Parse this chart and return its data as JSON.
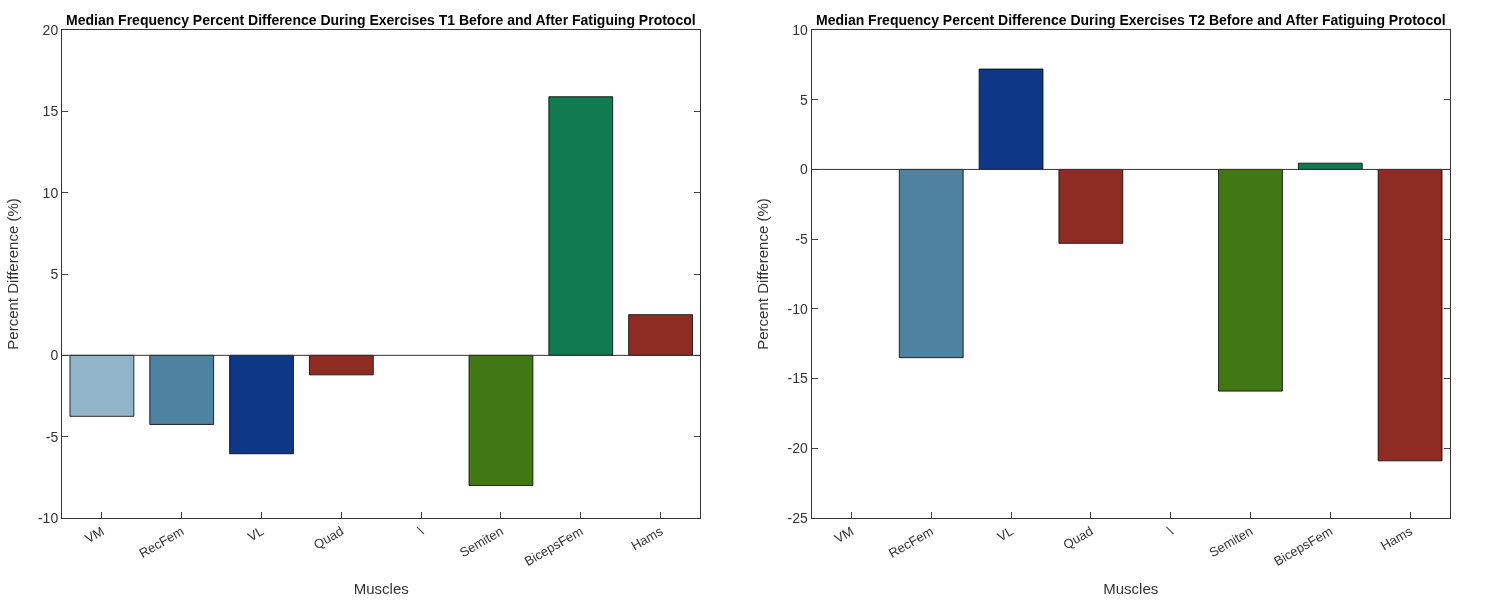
{
  "chart_data": [
    {
      "type": "bar",
      "title": "Median Frequency Percent Difference During Exercises T1 Before and After Fatiguing Protocol",
      "xlabel": "Muscles",
      "ylabel": "Percent Difference (%)",
      "categories": [
        "VM",
        "RecFem",
        "VL",
        "Quad",
        "\\",
        "Semiten",
        "BicepsFem",
        "Hams"
      ],
      "values": [
        -3.75,
        -4.25,
        -6.05,
        -1.2,
        null,
        -8.0,
        15.9,
        2.5
      ],
      "colors": [
        "#93b5ca",
        "#4f81a0",
        "#0f3787",
        "#8e2c24",
        "#888888",
        "#417813",
        "#117a50",
        "#8e2c24"
      ],
      "ylim": [
        -10,
        20
      ],
      "yticks": [
        -10,
        -5,
        0,
        5,
        10,
        15,
        20
      ],
      "ref_lines": [
        {
          "axis": "y",
          "value": 0,
          "color": "#333333"
        }
      ]
    },
    {
      "type": "bar",
      "title": "Median Frequency Percent Difference During Exercises T2 Before and After Fatiguing Protocol",
      "xlabel": "Muscles",
      "ylabel": "Percent Difference (%)",
      "categories": [
        "VM",
        "RecFem",
        "VL",
        "Quad",
        "\\",
        "Semiten",
        "BicepsFem",
        "Hams"
      ],
      "values": [
        null,
        -13.5,
        7.2,
        -5.3,
        null,
        -15.9,
        0.45,
        -20.9
      ],
      "colors": [
        "#93b5ca",
        "#4f81a0",
        "#0f3787",
        "#8e2c24",
        "#888888",
        "#417813",
        "#117a50",
        "#8e2c24"
      ],
      "ylim": [
        -25,
        10
      ],
      "yticks": [
        -25,
        -20,
        -15,
        -10,
        -5,
        0,
        5,
        10
      ],
      "ref_lines": [
        {
          "axis": "y",
          "value": 0,
          "color": "#333333"
        }
      ]
    }
  ]
}
